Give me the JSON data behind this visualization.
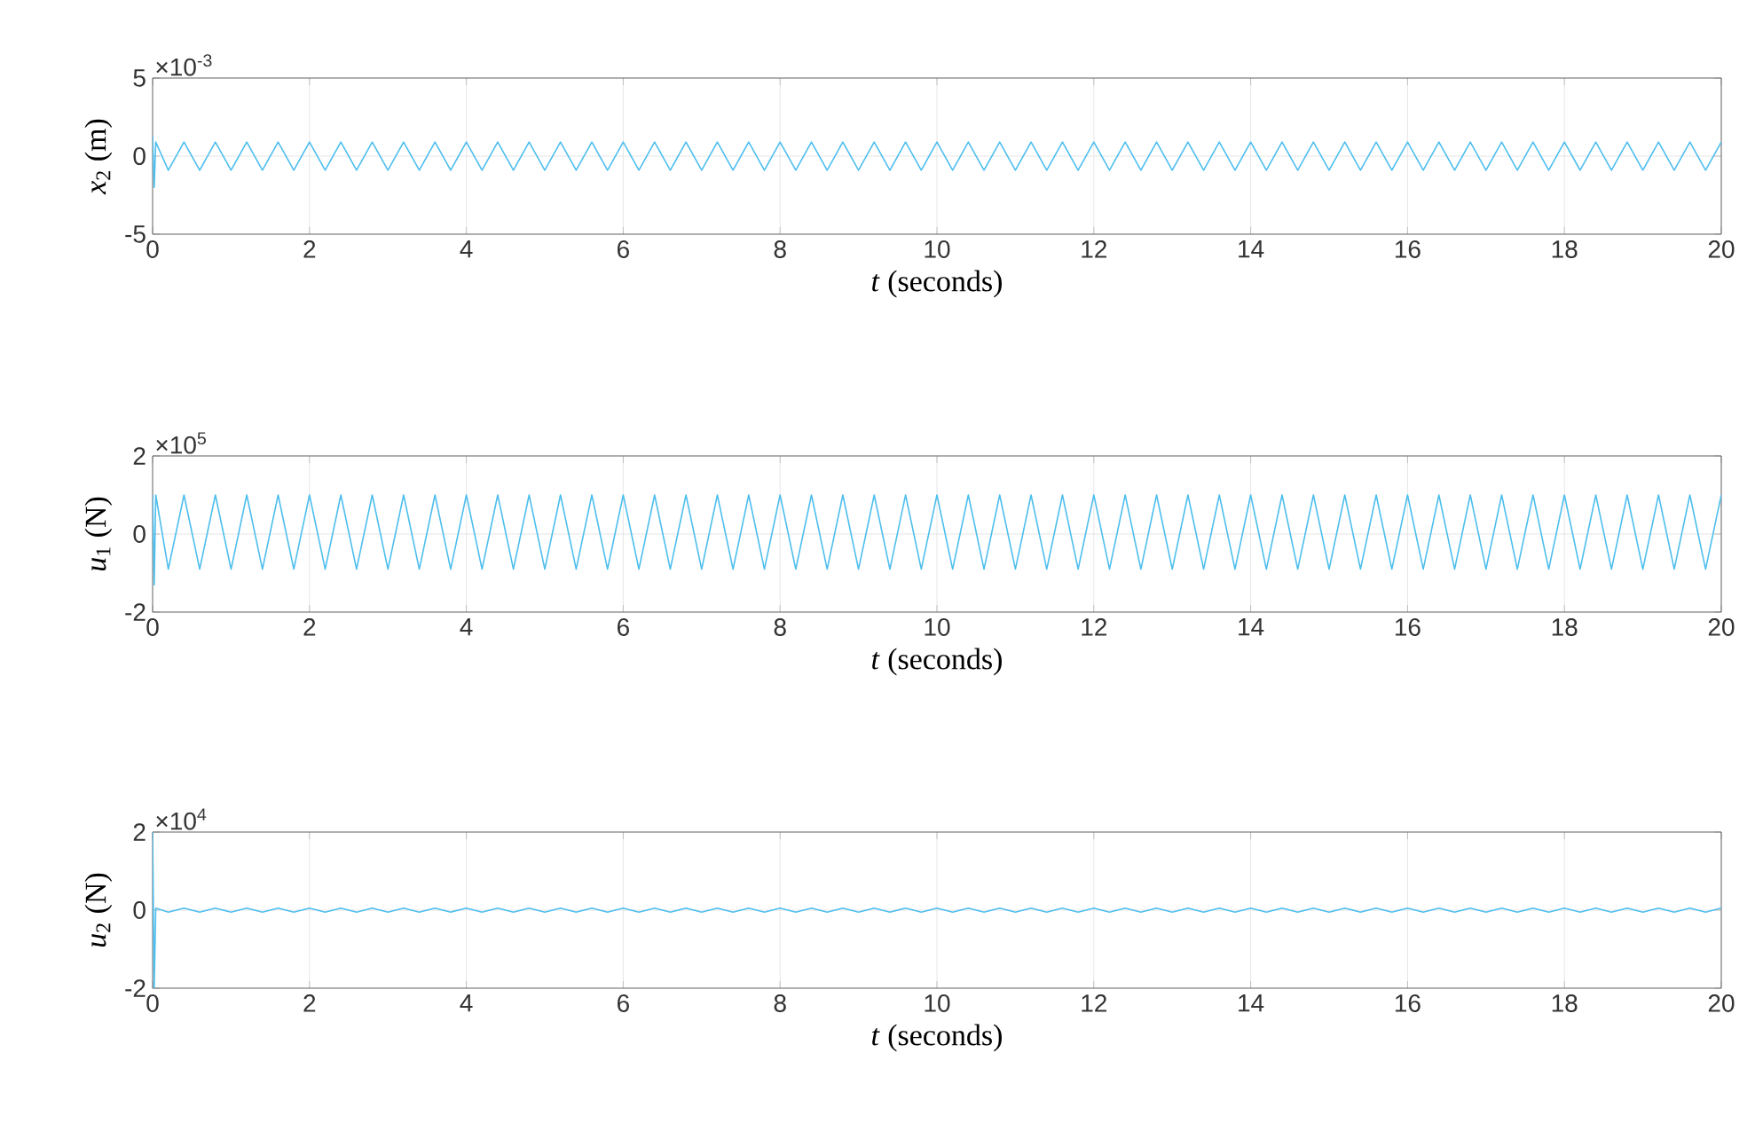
{
  "chart_data": [
    {
      "type": "line",
      "ylabel": "*x*$_{2}$ (m)",
      "xlabel": "*t* (seconds)",
      "annotations": [
        "×10$^{-3}$"
      ],
      "grid": true,
      "xlim": [
        0,
        20
      ],
      "xticks": [
        0,
        2,
        4,
        6,
        8,
        10,
        12,
        14,
        16,
        18,
        20
      ],
      "ylim": [
        -5,
        5
      ],
      "yticks": [
        -5,
        0,
        5
      ],
      "x": [
        0,
        0.02,
        0.04,
        0.2,
        0.4,
        0.6,
        0.8,
        1,
        1.2,
        1.4,
        1.6,
        1.8,
        2,
        2.2,
        2.4,
        2.6,
        2.8,
        3,
        3.2,
        3.4,
        3.6,
        3.8,
        4,
        4.2,
        4.4,
        4.6,
        4.8,
        5,
        5.2,
        5.4,
        5.6,
        5.8,
        6,
        6.2,
        6.4,
        6.6,
        6.8,
        7,
        7.2,
        7.4,
        7.6,
        7.8,
        8,
        8.2,
        8.4,
        8.6,
        8.8,
        9,
        9.2,
        9.4,
        9.6,
        9.8,
        10,
        10.2,
        10.4,
        10.6,
        10.8,
        11,
        11.2,
        11.4,
        11.6,
        11.8,
        12,
        12.2,
        12.4,
        12.6,
        12.8,
        13,
        13.2,
        13.4,
        13.6,
        13.8,
        14,
        14.2,
        14.4,
        14.6,
        14.8,
        15,
        15.2,
        15.4,
        15.6,
        15.8,
        16,
        16.2,
        16.4,
        16.6,
        16.8,
        17,
        17.2,
        17.4,
        17.6,
        17.8,
        18,
        18.2,
        18.4,
        18.6,
        18.8,
        19,
        19.2,
        19.4,
        19.6,
        19.8,
        20
      ],
      "series": [
        {
          "color": "#4dbeee",
          "values": [
            1.3,
            -2,
            0.9,
            -0.9,
            0.9,
            -0.9,
            0.9,
            -0.9,
            0.9,
            -0.9,
            0.9,
            -0.9,
            0.9,
            -0.9,
            0.9,
            -0.9,
            0.9,
            -0.9,
            0.9,
            -0.9,
            0.9,
            -0.9,
            0.9,
            -0.9,
            0.9,
            -0.9,
            0.9,
            -0.9,
            0.9,
            -0.9,
            0.9,
            -0.9,
            0.9,
            -0.9,
            0.9,
            -0.9,
            0.9,
            -0.9,
            0.9,
            -0.9,
            0.9,
            -0.9,
            0.9,
            -0.9,
            0.9,
            -0.9,
            0.9,
            -0.9,
            0.9,
            -0.9,
            0.9,
            -0.9,
            0.9,
            -0.9,
            0.9,
            -0.9,
            0.9,
            -0.9,
            0.9,
            -0.9,
            0.9,
            -0.9,
            0.9,
            -0.9,
            0.9,
            -0.9,
            0.9,
            -0.9,
            0.9,
            -0.9,
            0.9,
            -0.9,
            0.9,
            -0.9,
            0.9,
            -0.9,
            0.9,
            -0.9,
            0.9,
            -0.9,
            0.9,
            -0.9,
            0.9,
            -0.9,
            0.9,
            -0.9,
            0.9,
            -0.9,
            0.9,
            -0.9,
            0.9,
            -0.9,
            0.9,
            -0.9,
            0.9,
            -0.9,
            0.9,
            -0.9,
            0.9,
            -0.9,
            0.9,
            -0.9,
            0.9
          ]
        }
      ]
    },
    {
      "type": "line",
      "ylabel": "*u*$_{1}$ (N)",
      "xlabel": "*t* (seconds)",
      "annotations": [
        "×10$^{5}$"
      ],
      "grid": true,
      "xlim": [
        0,
        20
      ],
      "xticks": [
        0,
        2,
        4,
        6,
        8,
        10,
        12,
        14,
        16,
        18,
        20
      ],
      "ylim": [
        -2,
        2
      ],
      "yticks": [
        -2,
        0,
        2
      ],
      "x": [
        0,
        0.02,
        0.04,
        0.2,
        0.4,
        0.6,
        0.8,
        1,
        1.2,
        1.4,
        1.6,
        1.8,
        2,
        2.2,
        2.4,
        2.6,
        2.8,
        3,
        3.2,
        3.4,
        3.6,
        3.8,
        4,
        4.2,
        4.4,
        4.6,
        4.8,
        5,
        5.2,
        5.4,
        5.6,
        5.8,
        6,
        6.2,
        6.4,
        6.6,
        6.8,
        7,
        7.2,
        7.4,
        7.6,
        7.8,
        8,
        8.2,
        8.4,
        8.6,
        8.8,
        9,
        9.2,
        9.4,
        9.6,
        9.8,
        10,
        10.2,
        10.4,
        10.6,
        10.8,
        11,
        11.2,
        11.4,
        11.6,
        11.8,
        12,
        12.2,
        12.4,
        12.6,
        12.8,
        13,
        13.2,
        13.4,
        13.6,
        13.8,
        14,
        14.2,
        14.4,
        14.6,
        14.8,
        15,
        15.2,
        15.4,
        15.6,
        15.8,
        16,
        16.2,
        16.4,
        16.6,
        16.8,
        17,
        17.2,
        17.4,
        17.6,
        17.8,
        18,
        18.2,
        18.4,
        18.6,
        18.8,
        19,
        19.2,
        19.4,
        19.6,
        19.8,
        20
      ],
      "series": [
        {
          "color": "#4dbeee",
          "values": [
            1,
            -1.3,
            1,
            -0.9,
            1,
            -0.9,
            1,
            -0.9,
            1,
            -0.9,
            1,
            -0.9,
            1,
            -0.9,
            1,
            -0.9,
            1,
            -0.9,
            1,
            -0.9,
            1,
            -0.9,
            1,
            -0.9,
            1,
            -0.9,
            1,
            -0.9,
            1,
            -0.9,
            1,
            -0.9,
            1,
            -0.9,
            1,
            -0.9,
            1,
            -0.9,
            1,
            -0.9,
            1,
            -0.9,
            1,
            -0.9,
            1,
            -0.9,
            1,
            -0.9,
            1,
            -0.9,
            1,
            -0.9,
            1,
            -0.9,
            1,
            -0.9,
            1,
            -0.9,
            1,
            -0.9,
            1,
            -0.9,
            1,
            -0.9,
            1,
            -0.9,
            1,
            -0.9,
            1,
            -0.9,
            1,
            -0.9,
            1,
            -0.9,
            1,
            -0.9,
            1,
            -0.9,
            1,
            -0.9,
            1,
            -0.9,
            1,
            -0.9,
            1,
            -0.9,
            1,
            -0.9,
            1,
            -0.9,
            1,
            -0.9,
            1,
            -0.9,
            1,
            -0.9,
            1,
            -0.9,
            1,
            -0.9,
            1,
            -0.9,
            1
          ]
        }
      ]
    },
    {
      "type": "line",
      "ylabel": "*u*$_{2}$ (N)",
      "xlabel": "*t* (seconds)",
      "annotations": [
        "×10$^{4}$"
      ],
      "grid": true,
      "xlim": [
        0,
        20
      ],
      "xticks": [
        0,
        2,
        4,
        6,
        8,
        10,
        12,
        14,
        16,
        18,
        20
      ],
      "ylim": [
        -2,
        2
      ],
      "yticks": [
        -2,
        0,
        2
      ],
      "x": [
        0,
        0.02,
        0.04,
        0.2,
        0.4,
        0.6,
        0.8,
        1,
        1.2,
        1.4,
        1.6,
        1.8,
        2,
        2.2,
        2.4,
        2.6,
        2.8,
        3,
        3.2,
        3.4,
        3.6,
        3.8,
        4,
        4.2,
        4.4,
        4.6,
        4.8,
        5,
        5.2,
        5.4,
        5.6,
        5.8,
        6,
        6.2,
        6.4,
        6.6,
        6.8,
        7,
        7.2,
        7.4,
        7.6,
        7.8,
        8,
        8.2,
        8.4,
        8.6,
        8.8,
        9,
        9.2,
        9.4,
        9.6,
        9.8,
        10,
        10.2,
        10.4,
        10.6,
        10.8,
        11,
        11.2,
        11.4,
        11.6,
        11.8,
        12,
        12.2,
        12.4,
        12.6,
        12.8,
        13,
        13.2,
        13.4,
        13.6,
        13.8,
        14,
        14.2,
        14.4,
        14.6,
        14.8,
        15,
        15.2,
        15.4,
        15.6,
        15.8,
        16,
        16.2,
        16.4,
        16.6,
        16.8,
        17,
        17.2,
        17.4,
        17.6,
        17.8,
        18,
        18.2,
        18.4,
        18.6,
        18.8,
        19,
        19.2,
        19.4,
        19.6,
        19.8,
        20
      ],
      "series": [
        {
          "color": "#4dbeee",
          "values": [
            2,
            -2,
            0.05,
            -0.05,
            0.05,
            -0.05,
            0.05,
            -0.05,
            0.05,
            -0.05,
            0.05,
            -0.05,
            0.05,
            -0.05,
            0.05,
            -0.05,
            0.05,
            -0.05,
            0.05,
            -0.05,
            0.05,
            -0.05,
            0.05,
            -0.05,
            0.05,
            -0.05,
            0.05,
            -0.05,
            0.05,
            -0.05,
            0.05,
            -0.05,
            0.05,
            -0.05,
            0.05,
            -0.05,
            0.05,
            -0.05,
            0.05,
            -0.05,
            0.05,
            -0.05,
            0.05,
            -0.05,
            0.05,
            -0.05,
            0.05,
            -0.05,
            0.05,
            -0.05,
            0.05,
            -0.05,
            0.05,
            -0.05,
            0.05,
            -0.05,
            0.05,
            -0.05,
            0.05,
            -0.05,
            0.05,
            -0.05,
            0.05,
            -0.05,
            0.05,
            -0.05,
            0.05,
            -0.05,
            0.05,
            -0.05,
            0.05,
            -0.05,
            0.05,
            -0.05,
            0.05,
            -0.05,
            0.05,
            -0.05,
            0.05,
            -0.05,
            0.05,
            -0.05,
            0.05,
            -0.05,
            0.05,
            -0.05,
            0.05,
            -0.05,
            0.05,
            -0.05,
            0.05,
            -0.05,
            0.05,
            -0.05,
            0.05,
            -0.05,
            0.05,
            -0.05,
            0.05,
            -0.05,
            0.05,
            -0.05,
            0.05
          ]
        }
      ]
    }
  ]
}
